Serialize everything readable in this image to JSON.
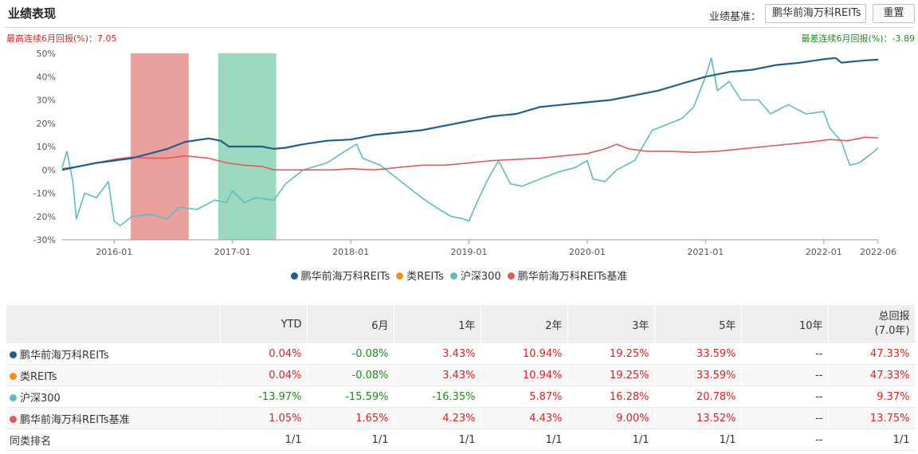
{
  "header": {
    "title": "业绩表现",
    "benchmark_label": "业绩基准：",
    "benchmark_value": "鹏华前海万科REITs",
    "reset_label": "重置",
    "best_note": "最高连续6月回报(%)：7.05",
    "worst_note": "最差连续6月回报(%)：-3.89"
  },
  "colors": {
    "fund": "#1f5f8b",
    "category": "#f28e1c",
    "hs300": "#5dbcc0",
    "benchmark": "#e05a5a",
    "best_band": "#d9534f",
    "worst_band": "#48bb88",
    "positive": "#e02020",
    "negative": "#1f8a1f"
  },
  "chart_data": {
    "type": "line",
    "ylabel": "",
    "ylim": [
      -30,
      50
    ],
    "yticks": [
      "-30%",
      "-20%",
      "-10%",
      "0%",
      "10%",
      "20%",
      "30%",
      "40%",
      "50%"
    ],
    "ytick_values": [
      -30,
      -20,
      -10,
      0,
      10,
      20,
      30,
      40,
      50
    ],
    "xlim": [
      2015.56,
      2022.46
    ],
    "xticks": [
      {
        "label": "2016-01",
        "t": 2016.0
      },
      {
        "label": "2017-01",
        "t": 2017.0
      },
      {
        "label": "2018-01",
        "t": 2018.0
      },
      {
        "label": "2019-01",
        "t": 2019.0
      },
      {
        "label": "2020-01",
        "t": 2020.0
      },
      {
        "label": "2021-01",
        "t": 2021.0
      },
      {
        "label": "2022-01",
        "t": 2022.0
      },
      {
        "label": "2022-06",
        "t": 2022.46
      }
    ],
    "bands": [
      {
        "name": "最高连续6月回报",
        "t0": 2016.14,
        "t1": 2016.63,
        "color": "#d9534f"
      },
      {
        "name": "最差连续6月回报",
        "t0": 2016.88,
        "t1": 2017.37,
        "color": "#48bb88"
      }
    ],
    "series": [
      {
        "name": "鹏华前海万科REITs",
        "color": "#1f5f8b",
        "points": [
          [
            2015.56,
            0
          ],
          [
            2015.7,
            1.5
          ],
          [
            2015.85,
            3
          ],
          [
            2016.0,
            4
          ],
          [
            2016.15,
            5
          ],
          [
            2016.3,
            7
          ],
          [
            2016.45,
            9
          ],
          [
            2016.6,
            12
          ],
          [
            2016.8,
            13.5
          ],
          [
            2016.9,
            12.5
          ],
          [
            2016.97,
            10
          ],
          [
            2017.1,
            10
          ],
          [
            2017.25,
            10
          ],
          [
            2017.35,
            9
          ],
          [
            2017.45,
            9.5
          ],
          [
            2017.6,
            11
          ],
          [
            2017.8,
            12.5
          ],
          [
            2018.0,
            13
          ],
          [
            2018.2,
            15
          ],
          [
            2018.4,
            16
          ],
          [
            2018.6,
            17
          ],
          [
            2018.8,
            19
          ],
          [
            2018.9,
            20
          ],
          [
            2019.0,
            21
          ],
          [
            2019.2,
            23
          ],
          [
            2019.4,
            24
          ],
          [
            2019.6,
            27
          ],
          [
            2019.8,
            28
          ],
          [
            2020.0,
            29
          ],
          [
            2020.2,
            30
          ],
          [
            2020.4,
            32
          ],
          [
            2020.6,
            34
          ],
          [
            2020.8,
            37
          ],
          [
            2021.0,
            40
          ],
          [
            2021.2,
            42
          ],
          [
            2021.4,
            43
          ],
          [
            2021.6,
            45
          ],
          [
            2021.8,
            46
          ],
          [
            2022.0,
            47.5
          ],
          [
            2022.1,
            48
          ],
          [
            2022.15,
            46
          ],
          [
            2022.25,
            46.5
          ],
          [
            2022.35,
            47
          ],
          [
            2022.46,
            47.3
          ]
        ]
      },
      {
        "name": "类REITs",
        "color": "#f28e1c",
        "points": [
          [
            2015.56,
            0
          ],
          [
            2015.7,
            1.5
          ],
          [
            2015.85,
            3
          ],
          [
            2016.0,
            4
          ],
          [
            2016.15,
            5
          ],
          [
            2016.3,
            7
          ],
          [
            2016.45,
            9
          ],
          [
            2016.6,
            12
          ],
          [
            2016.8,
            13.5
          ],
          [
            2016.9,
            12.5
          ],
          [
            2016.97,
            10
          ],
          [
            2017.1,
            10
          ],
          [
            2017.25,
            10
          ],
          [
            2017.35,
            9
          ],
          [
            2017.45,
            9.5
          ],
          [
            2017.6,
            11
          ],
          [
            2017.8,
            12.5
          ],
          [
            2018.0,
            13
          ],
          [
            2018.2,
            15
          ],
          [
            2018.4,
            16
          ],
          [
            2018.6,
            17
          ],
          [
            2018.8,
            19
          ],
          [
            2018.9,
            20
          ],
          [
            2019.0,
            21
          ],
          [
            2019.2,
            23
          ],
          [
            2019.4,
            24
          ],
          [
            2019.6,
            27
          ],
          [
            2019.8,
            28
          ],
          [
            2020.0,
            29
          ],
          [
            2020.2,
            30
          ],
          [
            2020.4,
            32
          ],
          [
            2020.6,
            34
          ],
          [
            2020.8,
            37
          ],
          [
            2021.0,
            40
          ],
          [
            2021.2,
            42
          ],
          [
            2021.4,
            43
          ],
          [
            2021.6,
            45
          ],
          [
            2021.8,
            46
          ],
          [
            2022.0,
            47.5
          ],
          [
            2022.1,
            48
          ],
          [
            2022.15,
            46
          ],
          [
            2022.25,
            46.5
          ],
          [
            2022.35,
            47
          ],
          [
            2022.46,
            47.3
          ]
        ]
      },
      {
        "name": "沪深300",
        "color": "#5dbcc0",
        "points": [
          [
            2015.56,
            1
          ],
          [
            2015.6,
            8
          ],
          [
            2015.65,
            -5
          ],
          [
            2015.68,
            -21
          ],
          [
            2015.75,
            -10
          ],
          [
            2015.85,
            -12
          ],
          [
            2015.95,
            -5
          ],
          [
            2016.0,
            -22
          ],
          [
            2016.05,
            -24
          ],
          [
            2016.15,
            -20
          ],
          [
            2016.3,
            -19
          ],
          [
            2016.45,
            -21
          ],
          [
            2016.55,
            -16
          ],
          [
            2016.7,
            -17
          ],
          [
            2016.85,
            -13
          ],
          [
            2016.95,
            -14
          ],
          [
            2017.0,
            -9
          ],
          [
            2017.1,
            -14
          ],
          [
            2017.2,
            -12
          ],
          [
            2017.35,
            -13
          ],
          [
            2017.45,
            -6
          ],
          [
            2017.6,
            0
          ],
          [
            2017.8,
            3
          ],
          [
            2017.95,
            8
          ],
          [
            2018.05,
            11
          ],
          [
            2018.1,
            5
          ],
          [
            2018.25,
            2
          ],
          [
            2018.4,
            -4
          ],
          [
            2018.6,
            -12
          ],
          [
            2018.75,
            -17
          ],
          [
            2018.85,
            -20
          ],
          [
            2018.95,
            -21
          ],
          [
            2019.0,
            -22
          ],
          [
            2019.05,
            -16
          ],
          [
            2019.15,
            -5
          ],
          [
            2019.25,
            4
          ],
          [
            2019.35,
            -6
          ],
          [
            2019.45,
            -7
          ],
          [
            2019.6,
            -4
          ],
          [
            2019.75,
            -1
          ],
          [
            2019.9,
            1
          ],
          [
            2020.0,
            4
          ],
          [
            2020.05,
            -4
          ],
          [
            2020.15,
            -5
          ],
          [
            2020.25,
            0
          ],
          [
            2020.4,
            4
          ],
          [
            2020.55,
            17
          ],
          [
            2020.65,
            19
          ],
          [
            2020.8,
            22
          ],
          [
            2020.9,
            27
          ],
          [
            2021.0,
            40
          ],
          [
            2021.05,
            48
          ],
          [
            2021.1,
            34
          ],
          [
            2021.2,
            38
          ],
          [
            2021.3,
            30
          ],
          [
            2021.45,
            30
          ],
          [
            2021.55,
            24
          ],
          [
            2021.7,
            28
          ],
          [
            2021.85,
            24
          ],
          [
            2022.0,
            25
          ],
          [
            2022.05,
            18
          ],
          [
            2022.15,
            12
          ],
          [
            2022.22,
            2
          ],
          [
            2022.3,
            3
          ],
          [
            2022.38,
            6
          ],
          [
            2022.46,
            9.4
          ]
        ]
      },
      {
        "name": "鹏华前海万科REITs基准",
        "color": "#e05a5a",
        "points": [
          [
            2015.56,
            0.5
          ],
          [
            2015.7,
            1.5
          ],
          [
            2015.85,
            3
          ],
          [
            2016.0,
            4.5
          ],
          [
            2016.15,
            5.5
          ],
          [
            2016.3,
            5
          ],
          [
            2016.45,
            5
          ],
          [
            2016.6,
            6
          ],
          [
            2016.8,
            5
          ],
          [
            2016.95,
            3
          ],
          [
            2017.1,
            2
          ],
          [
            2017.25,
            1.5
          ],
          [
            2017.35,
            0
          ],
          [
            2017.5,
            0
          ],
          [
            2017.7,
            0
          ],
          [
            2017.85,
            0
          ],
          [
            2018.0,
            0.5
          ],
          [
            2018.2,
            0
          ],
          [
            2018.4,
            1
          ],
          [
            2018.6,
            2
          ],
          [
            2018.8,
            2
          ],
          [
            2019.0,
            3
          ],
          [
            2019.2,
            4
          ],
          [
            2019.4,
            4.5
          ],
          [
            2019.6,
            5
          ],
          [
            2019.8,
            6
          ],
          [
            2020.0,
            7
          ],
          [
            2020.15,
            9
          ],
          [
            2020.25,
            11
          ],
          [
            2020.35,
            9
          ],
          [
            2020.5,
            8
          ],
          [
            2020.7,
            8
          ],
          [
            2020.9,
            7.5
          ],
          [
            2021.1,
            8
          ],
          [
            2021.3,
            9
          ],
          [
            2021.5,
            10
          ],
          [
            2021.7,
            11
          ],
          [
            2021.9,
            12
          ],
          [
            2022.05,
            13
          ],
          [
            2022.2,
            12.5
          ],
          [
            2022.35,
            14
          ],
          [
            2022.46,
            13.75
          ]
        ]
      }
    ]
  },
  "table": {
    "headers": [
      "",
      "YTD",
      "6月",
      "1年",
      "2年",
      "3年",
      "5年",
      "10年",
      "总回报"
    ],
    "total_sub": "(7.0年)",
    "rows": [
      {
        "name": "鹏华前海万科REITs",
        "dot": "#1f5f8b",
        "values": [
          "0.04%",
          "-0.08%",
          "3.43%",
          "10.94%",
          "19.25%",
          "33.59%",
          "--",
          "47.33%"
        ]
      },
      {
        "name": "类REITs",
        "dot": "#f28e1c",
        "values": [
          "0.04%",
          "-0.08%",
          "3.43%",
          "10.94%",
          "19.25%",
          "33.59%",
          "--",
          "47.33%"
        ]
      },
      {
        "name": "沪深300",
        "dot": "#5dbcc0",
        "values": [
          "-13.97%",
          "-15.59%",
          "-16.35%",
          "5.87%",
          "16.28%",
          "20.78%",
          "--",
          "9.37%"
        ]
      },
      {
        "name": "鹏华前海万科REITs基准",
        "dot": "#e05a5a",
        "values": [
          "1.05%",
          "1.65%",
          "4.23%",
          "4.43%",
          "9.00%",
          "13.52%",
          "--",
          "13.75%"
        ]
      },
      {
        "name": "同类排名",
        "dot": "",
        "values": [
          "1/1",
          "1/1",
          "1/1",
          "1/1",
          "1/1",
          "1/1",
          "--",
          "1/1"
        ]
      }
    ]
  }
}
